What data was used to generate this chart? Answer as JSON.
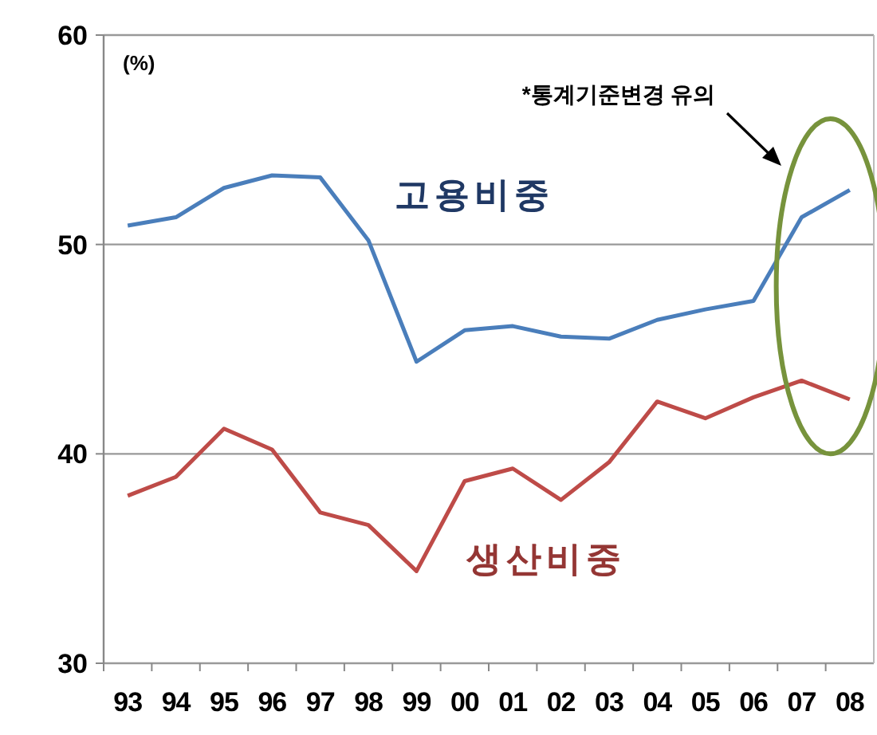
{
  "chart_data": {
    "type": "line",
    "ylabel": "(%)",
    "categories": [
      "93",
      "94",
      "95",
      "96",
      "97",
      "98",
      "99",
      "00",
      "01",
      "02",
      "03",
      "04",
      "05",
      "06",
      "07",
      "08"
    ],
    "series": [
      {
        "name": "고용비중",
        "color": "#4a7ebb",
        "values": [
          50.9,
          51.3,
          52.7,
          53.3,
          53.2,
          50.2,
          44.4,
          45.9,
          46.1,
          45.6,
          45.5,
          46.4,
          46.9,
          47.3,
          51.3,
          52.6
        ]
      },
      {
        "name": "생산비중",
        "color": "#be4b48",
        "values": [
          38.0,
          38.9,
          41.2,
          40.2,
          37.2,
          36.6,
          34.4,
          38.7,
          39.3,
          37.8,
          39.6,
          42.5,
          41.7,
          42.7,
          43.5,
          42.6
        ]
      }
    ],
    "ylim": [
      30,
      60
    ],
    "yticks": [
      30,
      40,
      50,
      60
    ],
    "grid": "y",
    "legend": false,
    "marker": "none",
    "line_style": "solid",
    "annotations": [
      "*통계기준변경 유의"
    ]
  }
}
